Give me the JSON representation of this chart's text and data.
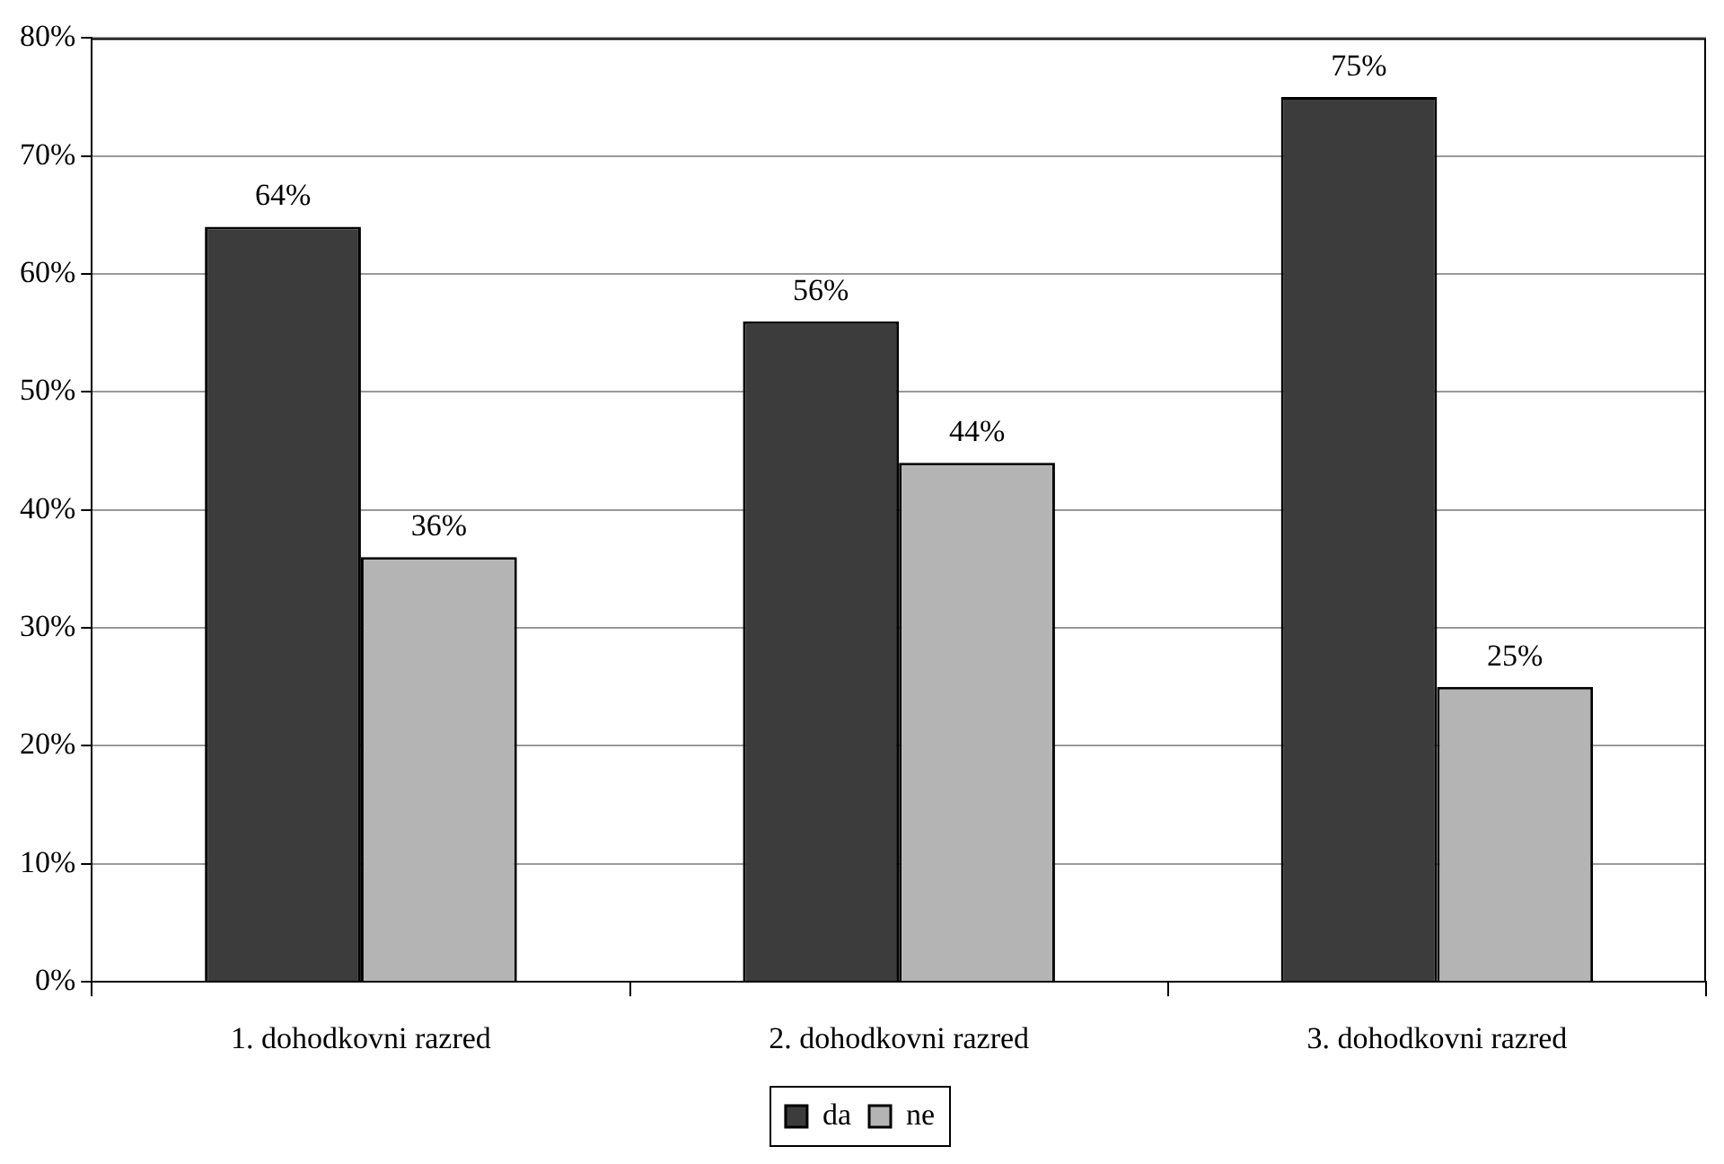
{
  "chart_data": {
    "type": "bar",
    "categories": [
      "1. dohodkovni razred",
      "2. dohodkovni razred",
      "3. dohodkovni razred"
    ],
    "series": [
      {
        "name": "da",
        "color": "#3c3c3c",
        "values": [
          64,
          56,
          75
        ],
        "value_labels": [
          "64%",
          "56%",
          "75%"
        ]
      },
      {
        "name": "ne",
        "color": "#b4b4b4",
        "values": [
          36,
          44,
          25
        ],
        "value_labels": [
          "36%",
          "44%",
          "25%"
        ]
      }
    ],
    "ylim": [
      0,
      80
    ],
    "yticks": [
      {
        "value": 0,
        "label": "0%"
      },
      {
        "value": 10,
        "label": "10%"
      },
      {
        "value": 20,
        "label": "20%"
      },
      {
        "value": 30,
        "label": "30%"
      },
      {
        "value": 40,
        "label": "40%"
      },
      {
        "value": 50,
        "label": "50%"
      },
      {
        "value": 60,
        "label": "60%"
      },
      {
        "value": 70,
        "label": "70%"
      },
      {
        "value": 80,
        "label": "80%"
      }
    ],
    "grid": "y",
    "legend": "bottom"
  }
}
